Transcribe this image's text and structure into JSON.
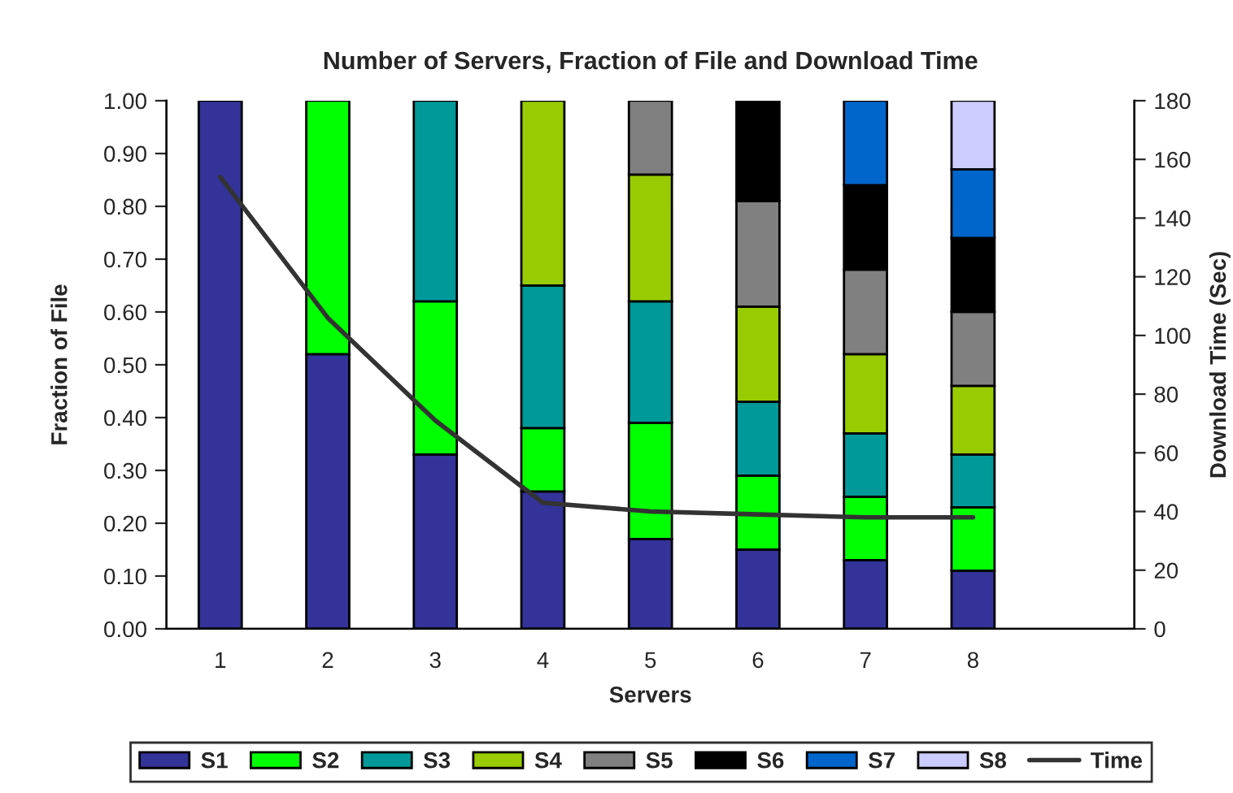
{
  "chart_data": {
    "type": "bar",
    "title": "Number of Servers, Fraction of File and Download Time",
    "xlabel": "Servers",
    "ylabel": "Fraction of File",
    "y2label": "Download Time (Sec)",
    "categories": [
      "1",
      "2",
      "3",
      "4",
      "5",
      "6",
      "7",
      "8",
      null
    ],
    "stacked": true,
    "series": [
      {
        "name": "S1",
        "color": "#333399",
        "values": [
          1.0,
          0.52,
          0.33,
          0.26,
          0.17,
          0.15,
          0.13,
          0.11,
          null
        ]
      },
      {
        "name": "S2",
        "color": "#00ff00",
        "values": [
          null,
          0.48,
          0.29,
          0.12,
          0.22,
          0.14,
          0.12,
          0.12,
          null
        ]
      },
      {
        "name": "S3",
        "color": "#009999",
        "values": [
          null,
          null,
          0.38,
          0.27,
          0.23,
          0.14,
          0.12,
          0.1,
          null
        ]
      },
      {
        "name": "S4",
        "color": "#99cc00",
        "values": [
          null,
          null,
          null,
          0.35,
          0.24,
          0.18,
          0.15,
          0.13,
          null
        ]
      },
      {
        "name": "S5",
        "color": "#808080",
        "values": [
          null,
          null,
          null,
          null,
          0.14,
          0.2,
          0.16,
          0.14,
          null
        ]
      },
      {
        "name": "S6",
        "color": "#000000",
        "values": [
          null,
          null,
          null,
          null,
          null,
          0.19,
          0.16,
          0.14,
          null
        ]
      },
      {
        "name": "S7",
        "color": "#0066cc",
        "values": [
          null,
          null,
          null,
          null,
          null,
          null,
          0.16,
          0.13,
          null
        ]
      },
      {
        "name": "S8",
        "color": "#ccccff",
        "values": [
          null,
          null,
          null,
          null,
          null,
          null,
          null,
          0.13,
          null
        ]
      },
      {
        "name": "Time",
        "type": "line",
        "axis": "y2",
        "color": "#333333",
        "values": [
          154,
          106,
          71,
          43,
          40,
          39,
          38,
          38,
          null
        ]
      }
    ],
    "ylim": [
      0,
      1
    ],
    "yticks": [
      {
        "value": 0,
        "label": "0.00"
      },
      {
        "value": 0.1,
        "label": "0.10"
      },
      {
        "value": 0.2,
        "label": "0.20"
      },
      {
        "value": 0.3,
        "label": "0.30"
      },
      {
        "value": 0.4,
        "label": "0.40"
      },
      {
        "value": 0.5,
        "label": "0.50"
      },
      {
        "value": 0.6,
        "label": "0.60"
      },
      {
        "value": 0.7,
        "label": "0.70"
      },
      {
        "value": 0.8,
        "label": "0.80"
      },
      {
        "value": 0.9,
        "label": "0.90"
      },
      {
        "value": 1,
        "label": "1.00"
      }
    ],
    "y2lim": [
      0,
      180
    ],
    "y2ticks": [
      0,
      20,
      40,
      60,
      80,
      100,
      120,
      140,
      160,
      180
    ],
    "grid": false,
    "legend": "bottom",
    "marker": "none",
    "line_style": "solid"
  }
}
